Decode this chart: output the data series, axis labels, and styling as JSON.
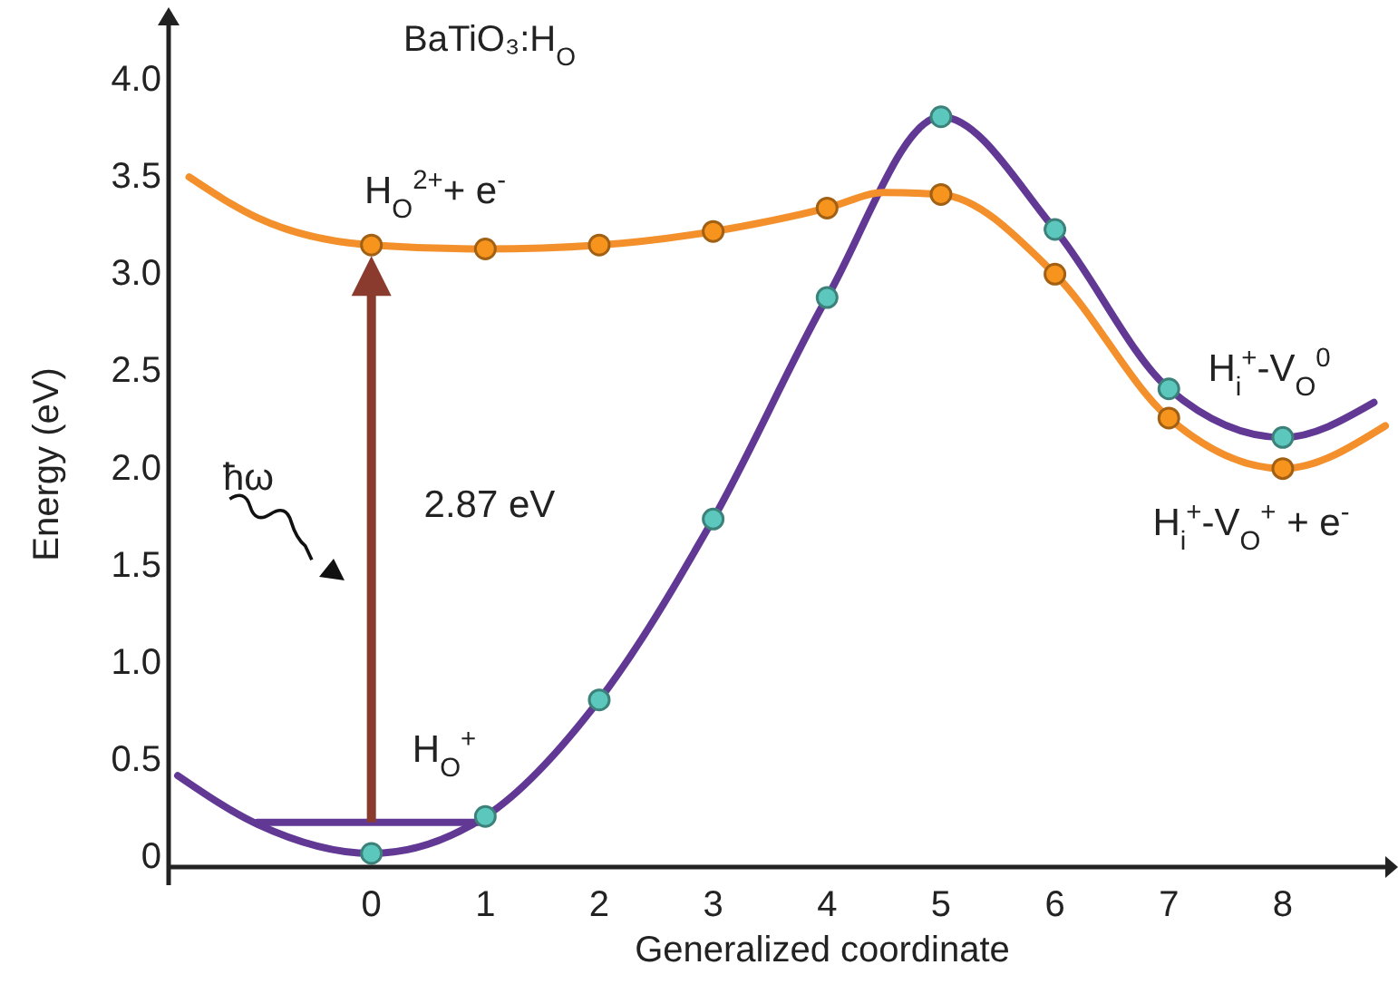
{
  "chart_data": {
    "type": "line",
    "title": "BaTiO₃:H$_{O}$",
    "xlabel": "Generalized coordinate",
    "ylabel": "Energy (eV)",
    "xlim": [
      -1.78,
      8.9
    ],
    "ylim": [
      -0.06,
      4.27
    ],
    "xticks": [
      0,
      1,
      2,
      3,
      4,
      5,
      6,
      7,
      8
    ],
    "yticks": [
      0,
      0.5,
      {
        "value": 1,
        "label": "1.0"
      },
      1.5,
      {
        "value": 2,
        "label": "2.0"
      },
      2.5,
      {
        "value": 3,
        "label": "3.0"
      },
      3.5,
      {
        "value": 4,
        "label": "4.0"
      }
    ],
    "series": [
      {
        "color": "#623895",
        "x": [
          -1.7,
          -1,
          0,
          1,
          2,
          3,
          4,
          5,
          6,
          7,
          8,
          8.8
        ],
        "values": [
          0.41,
          0.16,
          0.01,
          0.2,
          0.8,
          1.73,
          2.87,
          3.8,
          3.22,
          2.4,
          2.15,
          2.33
        ]
      },
      {
        "color": "#f3902c",
        "x": [
          -1.6,
          -1,
          0,
          1,
          2,
          3,
          4,
          4.5,
          5,
          6,
          7,
          8,
          8.9
        ],
        "values": [
          3.49,
          3.28,
          3.14,
          3.12,
          3.14,
          3.21,
          3.33,
          3.41,
          3.4,
          2.99,
          2.25,
          1.99,
          2.21
        ]
      },
      {
        "type": "scatter",
        "color": "#5cc8bd",
        "x": [
          0,
          1,
          2,
          3,
          4,
          5,
          6,
          7,
          8
        ],
        "values": [
          0.01,
          0.2,
          0.8,
          1.73,
          2.87,
          3.8,
          3.22,
          2.4,
          2.15
        ]
      },
      {
        "type": "scatter",
        "color": "#f7941d",
        "x": [
          0,
          1,
          2,
          3,
          4,
          5,
          6,
          7,
          8
        ],
        "values": [
          3.14,
          3.12,
          3.14,
          3.21,
          3.33,
          3.4,
          2.99,
          2.25,
          1.99
        ]
      },
      {
        "color": "#623895",
        "x": [
          -1,
          1
        ],
        "values": [
          0.17,
          0.17
        ]
      }
    ],
    "annotations": [
      "ħω",
      "2.87 eV",
      "H$_{O}$$^{2+}$+ e$^{-}$",
      "H$_{O}$$^{+}$",
      "H$_{i}$$^{+}$-V$_{O}$$^{0}$",
      "H$_{i}$$^{+}$-V$_{O}$$^{+}$ + e$^{-}$"
    ]
  }
}
